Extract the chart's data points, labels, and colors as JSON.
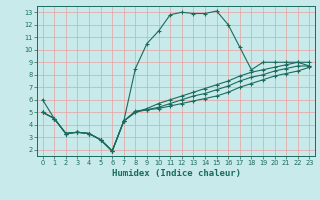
{
  "xlabel": "Humidex (Indice chaleur)",
  "bg_color": "#c8eaea",
  "grid_color": "#e8a0a0",
  "line_color": "#1a6b5e",
  "xlim": [
    -0.5,
    23.5
  ],
  "ylim": [
    1.5,
    13.5
  ],
  "xticks": [
    0,
    1,
    2,
    3,
    4,
    5,
    6,
    7,
    8,
    9,
    10,
    11,
    12,
    13,
    14,
    15,
    16,
    17,
    18,
    19,
    20,
    21,
    22,
    23
  ],
  "yticks": [
    2,
    3,
    4,
    5,
    6,
    7,
    8,
    9,
    10,
    11,
    12,
    13
  ],
  "line1_x": [
    0,
    1,
    2,
    3,
    4,
    5,
    6,
    7,
    8,
    9,
    10,
    11,
    12,
    13,
    14,
    15,
    16,
    17,
    18,
    19,
    20,
    21,
    22,
    23
  ],
  "line1_y": [
    6.0,
    4.5,
    3.3,
    3.4,
    3.3,
    2.8,
    1.9,
    4.3,
    8.5,
    10.5,
    11.5,
    12.8,
    13.0,
    12.9,
    12.9,
    13.1,
    12.0,
    10.2,
    8.4,
    9.0,
    9.0,
    9.0,
    9.0,
    8.7
  ],
  "line2_x": [
    0,
    1,
    2,
    3,
    4,
    5,
    6,
    7,
    8,
    9,
    10,
    11,
    12,
    13,
    14,
    15,
    16,
    17,
    18,
    19,
    20,
    21,
    22,
    23
  ],
  "line2_y": [
    5.0,
    4.5,
    3.3,
    3.4,
    3.3,
    2.8,
    1.9,
    4.3,
    5.1,
    5.2,
    5.3,
    5.5,
    5.7,
    5.9,
    6.1,
    6.3,
    6.6,
    7.0,
    7.3,
    7.6,
    7.9,
    8.1,
    8.3,
    8.6
  ],
  "line3_x": [
    0,
    1,
    2,
    3,
    4,
    5,
    6,
    7,
    8,
    9,
    10,
    11,
    12,
    13,
    14,
    15,
    16,
    17,
    18,
    19,
    20,
    21,
    22,
    23
  ],
  "line3_y": [
    5.0,
    4.5,
    3.3,
    3.4,
    3.3,
    2.8,
    1.9,
    4.3,
    5.0,
    5.2,
    5.4,
    5.7,
    6.0,
    6.3,
    6.5,
    6.8,
    7.1,
    7.5,
    7.8,
    8.0,
    8.3,
    8.5,
    8.7,
    8.7
  ],
  "line4_x": [
    0,
    1,
    2,
    3,
    4,
    5,
    6,
    7,
    8,
    9,
    10,
    11,
    12,
    13,
    14,
    15,
    16,
    17,
    18,
    19,
    20,
    21,
    22,
    23
  ],
  "line4_y": [
    5.0,
    4.5,
    3.3,
    3.4,
    3.3,
    2.8,
    1.9,
    4.3,
    5.0,
    5.3,
    5.7,
    6.0,
    6.3,
    6.6,
    6.9,
    7.2,
    7.5,
    7.9,
    8.2,
    8.4,
    8.6,
    8.8,
    9.0,
    9.0
  ],
  "xlabel_fontsize": 6.5,
  "tick_fontsize": 4.8
}
